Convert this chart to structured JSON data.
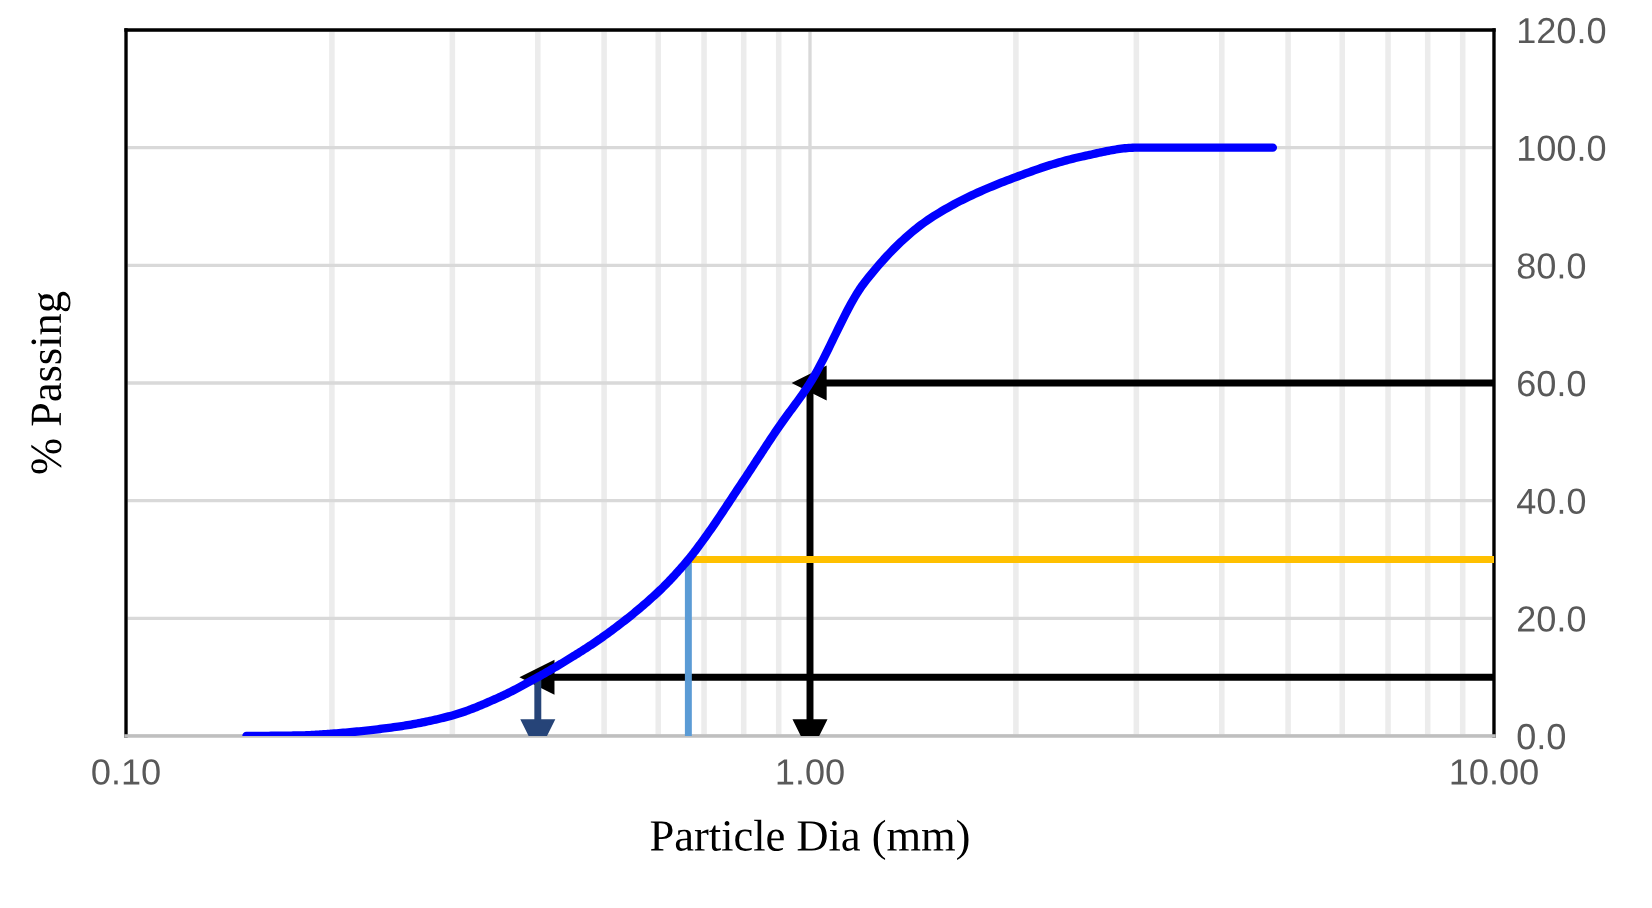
{
  "chart_data": {
    "type": "line",
    "xlabel": "Particle Dia (mm)",
    "ylabel": "% Passing",
    "log": "x",
    "grid": true,
    "xlim": [
      0.1,
      10
    ],
    "xticks": [
      {
        "value": 0.1,
        "label": "0.10"
      },
      {
        "value": 1,
        "label": "1.00"
      },
      {
        "value": 10,
        "label": "10.00"
      }
    ],
    "ylim": [
      0,
      120
    ],
    "yticks": [
      {
        "value": 0,
        "label": "0.0"
      },
      {
        "value": 20,
        "label": "20.0"
      },
      {
        "value": 40,
        "label": "40.0"
      },
      {
        "value": 60,
        "label": "60.0"
      },
      {
        "value": 80,
        "label": "80.0"
      },
      {
        "value": 100,
        "label": "100.0"
      },
      {
        "value": 120,
        "label": "120.0"
      }
    ],
    "series": [
      {
        "color": "#0000ff",
        "x": [
          0.15,
          0.18,
          0.2,
          0.25,
          0.3,
          0.35,
          0.4,
          0.45,
          0.5,
          0.6,
          0.664,
          0.7,
          0.8,
          0.9,
          1.0,
          1.2,
          1.5,
          2,
          2.5,
          3,
          4,
          4.75
        ],
        "values": [
          0,
          0.1,
          0.4,
          1.6,
          3.5,
          6.5,
          10,
          13.5,
          17,
          24.5,
          30,
          33.5,
          43.5,
          52.5,
          60,
          77,
          88,
          95,
          98.5,
          100,
          100,
          100
        ]
      },
      {
        "color": "#000000",
        "x": [
          10,
          1.0
        ],
        "values": [
          60,
          60
        ],
        "marker": "triangle"
      },
      {
        "color": "#000000",
        "x": [
          1.0,
          1.0
        ],
        "values": [
          60,
          0
        ],
        "marker": "triangle"
      },
      {
        "color": "#000000",
        "x": [
          10,
          0.4
        ],
        "values": [
          10,
          10
        ],
        "marker": "triangle"
      },
      {
        "color": "#264478",
        "x": [
          0.4,
          0.4
        ],
        "values": [
          10,
          0
        ],
        "marker": "triangle"
      },
      {
        "color": "#ffc000",
        "x": [
          0.664,
          10
        ],
        "values": [
          30,
          30
        ]
      },
      {
        "color": "#5b9bd5",
        "x": [
          0.664,
          0.664
        ],
        "values": [
          0,
          30
        ]
      }
    ]
  }
}
